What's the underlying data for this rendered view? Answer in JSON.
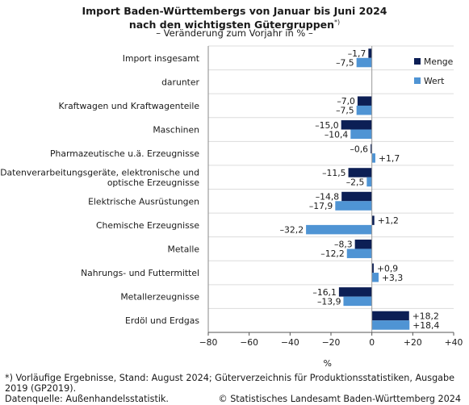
{
  "header": {
    "title_line1": "Import Baden-Württembergs von Januar bis Juni 2024",
    "title_line2": "nach den wichtigsten Gütergruppen",
    "title_marker": "*)",
    "subtitle": "– Veränderung zum Vorjahr in % –"
  },
  "footer": {
    "note": "*) Vorläufige Ergebnisse, Stand: August 2024; Güterverzeichnis für Produktionsstatistiken, Ausgabe 2019 (GP2019).",
    "source": "Datenquelle: Außenhandelsstatistik.",
    "copyright": "© Statistisches Landesamt Baden-Württemberg 2024"
  },
  "chart_data": {
    "type": "bar",
    "orientation": "horizontal",
    "categories": [
      "Import insgesamt",
      "darunter",
      "Kraftwagen und Kraftwagenteile",
      "Maschinen",
      "Pharmazeutische u.ä. Erzeugnisse",
      "Datenverarbeitungsgeräte, elektronische und optische Erzeugnisse",
      "Elektrische Ausrüstungen",
      "Chemische Erzeugnisse",
      "Metalle",
      "Nahrungs- und Futtermittel",
      "Metallerzeugnisse",
      "Erdöl und Erdgas"
    ],
    "category_label_lines": [
      [
        "Import insgesamt"
      ],
      [
        "darunter"
      ],
      [
        "Kraftwagen und Kraftwagenteile"
      ],
      [
        "Maschinen"
      ],
      [
        "Pharmazeutische u.ä. Erzeugnisse"
      ],
      [
        "Datenverarbeitungsgeräte, elektronische und",
        "optische Erzeugnisse"
      ],
      [
        "Elektrische Ausrüstungen"
      ],
      [
        "Chemische Erzeugnisse"
      ],
      [
        "Metalle"
      ],
      [
        "Nahrungs- und Futtermittel"
      ],
      [
        "Metallerzeugnisse"
      ],
      [
        "Erdöl und Erdgas"
      ]
    ],
    "series": [
      {
        "name": "Menge",
        "color": "#0c1f55",
        "values": [
          -1.7,
          null,
          -7.0,
          -15.0,
          -0.6,
          -11.5,
          -14.8,
          1.2,
          -8.3,
          0.9,
          -16.1,
          18.2
        ],
        "labels": [
          "–1,7",
          "",
          "–7,0",
          "–15,0",
          "–0,6",
          "–11,5",
          "–14,8",
          "+1,2",
          "–8,3",
          "+0,9",
          "–16,1",
          "+18,2"
        ]
      },
      {
        "name": "Wert",
        "color": "#4f94d4",
        "values": [
          -7.5,
          null,
          -7.5,
          -10.4,
          1.7,
          -2.5,
          -17.9,
          -32.2,
          -12.2,
          3.3,
          -13.9,
          18.4
        ],
        "labels": [
          "–7,5",
          "",
          "–7,5",
          "–10,4",
          "+1,7",
          "–2,5",
          "–17,9",
          "–32,2",
          "–12,2",
          "+3,3",
          "–13,9",
          "+18,4"
        ]
      }
    ],
    "xlim": [
      -80,
      40
    ],
    "xticks": [
      -80,
      -60,
      -40,
      -20,
      0,
      20,
      40
    ],
    "xtick_labels": [
      "−80",
      "−60",
      "−40",
      "−20",
      "0",
      "+20",
      "+40"
    ],
    "xlabel": "%",
    "ylabel": "",
    "grid": false,
    "legend_position": "top-right"
  }
}
